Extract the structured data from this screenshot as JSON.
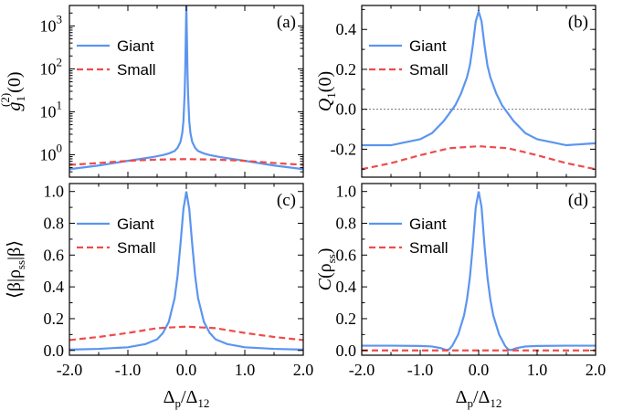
{
  "colors": {
    "giant": "#5b95f0",
    "small": "#ee4b4b",
    "zero_line": "#777777"
  },
  "xlabel": {
    "main": "Δ",
    "sub1": "p",
    "slash": "/Δ",
    "sub2": "12"
  },
  "chart_data": [
    {
      "id": "a",
      "type": "line",
      "panel_tag": "(a)",
      "yscale": "log",
      "ylabel": {
        "main": "g",
        "sup": "(2)",
        "sub": "1",
        "rest": "(0)"
      },
      "xlim": [
        -2.0,
        2.0
      ],
      "ylim": [
        0.3,
        3000
      ],
      "xticks": [
        -2.0,
        -1.0,
        0.0,
        1.0,
        2.0
      ],
      "xtick_labels": [],
      "yticks": [
        1,
        10,
        100,
        1000
      ],
      "ytick_labels": [
        {
          "b": "10",
          "e": "0"
        },
        {
          "b": "10",
          "e": "1"
        },
        {
          "b": "10",
          "e": "2"
        },
        {
          "b": "10",
          "e": "3"
        }
      ],
      "legend_position": "top-left",
      "series": [
        {
          "name": "Giant",
          "color": "#5b95f0",
          "dash": "solid",
          "x": [
            -2.0,
            -1.5,
            -1.0,
            -0.6,
            -0.4,
            -0.3,
            -0.2,
            -0.15,
            -0.1,
            -0.07,
            -0.05,
            -0.03,
            -0.02,
            -0.01,
            0.0,
            0.01,
            0.02,
            0.03,
            0.05,
            0.07,
            0.1,
            0.15,
            0.2,
            0.3,
            0.4,
            0.6,
            1.0,
            1.5,
            2.0
          ],
          "y": [
            0.46,
            0.56,
            0.72,
            0.87,
            0.98,
            1.07,
            1.22,
            1.45,
            2.0,
            3.2,
            6.0,
            25,
            80,
            500,
            3000,
            500,
            80,
            25,
            6.0,
            3.2,
            2.0,
            1.45,
            1.22,
            1.07,
            0.98,
            0.87,
            0.72,
            0.56,
            0.46
          ]
        },
        {
          "name": "Small",
          "color": "#ee4b4b",
          "dash": "dashed",
          "x": [
            -2.0,
            -1.5,
            -1.0,
            -0.5,
            0.0,
            0.5,
            1.0,
            1.5,
            2.0
          ],
          "y": [
            0.58,
            0.64,
            0.72,
            0.77,
            0.79,
            0.77,
            0.72,
            0.64,
            0.58
          ]
        }
      ]
    },
    {
      "id": "b",
      "type": "line",
      "panel_tag": "(b)",
      "yscale": "linear",
      "ylabel": {
        "main": "Q",
        "sub": "1",
        "rest": "(0)"
      },
      "xlim": [
        -2.0,
        2.0
      ],
      "ylim": [
        -0.34,
        0.52
      ],
      "xticks": [
        -2.0,
        -1.0,
        0.0,
        1.0,
        2.0
      ],
      "xtick_labels": [],
      "yticks": [
        -0.2,
        0.0,
        0.2,
        0.4
      ],
      "ytick_labels": [
        "-0.2",
        "0.0",
        "0.2",
        "0.4"
      ],
      "zero_line": true,
      "legend_position": "top-right",
      "series": [
        {
          "name": "Giant",
          "color": "#5b95f0",
          "dash": "solid",
          "x": [
            -2.0,
            -1.5,
            -1.0,
            -0.8,
            -0.6,
            -0.5,
            -0.4,
            -0.3,
            -0.2,
            -0.15,
            -0.1,
            -0.05,
            0.0,
            0.05,
            0.1,
            0.15,
            0.2,
            0.3,
            0.4,
            0.5,
            0.6,
            0.8,
            1.0,
            1.5,
            2.0
          ],
          "y": [
            -0.18,
            -0.18,
            -0.15,
            -0.12,
            -0.06,
            -0.02,
            0.02,
            0.08,
            0.16,
            0.22,
            0.32,
            0.44,
            0.49,
            0.44,
            0.32,
            0.22,
            0.16,
            0.08,
            0.02,
            -0.02,
            -0.06,
            -0.12,
            -0.15,
            -0.18,
            -0.17
          ]
        },
        {
          "name": "Small",
          "color": "#ee4b4b",
          "dash": "dashed",
          "x": [
            -2.0,
            -1.5,
            -1.0,
            -0.5,
            0.0,
            0.5,
            1.0,
            1.5,
            2.0
          ],
          "y": [
            -0.3,
            -0.27,
            -0.23,
            -0.195,
            -0.185,
            -0.195,
            -0.23,
            -0.27,
            -0.3
          ]
        }
      ]
    },
    {
      "id": "c",
      "type": "line",
      "panel_tag": "(c)",
      "yscale": "linear",
      "ylabel": {
        "text": "⟨β|ρ",
        "sub": "ss",
        "rest": "|β⟩"
      },
      "xlim": [
        -2.0,
        2.0
      ],
      "ylim": [
        -0.03,
        1.05
      ],
      "xticks": [
        -2.0,
        -1.0,
        0.0,
        1.0,
        2.0
      ],
      "xtick_labels": [
        "-2.0",
        "-1.0",
        "0.0",
        "1.0",
        "2.0"
      ],
      "yticks": [
        0.0,
        0.2,
        0.4,
        0.6,
        0.8,
        1.0
      ],
      "ytick_labels": [
        "0.0",
        "0.2",
        "0.4",
        "0.6",
        "0.8",
        "1.0"
      ],
      "legend_position": "top-right",
      "series": [
        {
          "name": "Giant",
          "color": "#5b95f0",
          "dash": "solid",
          "x": [
            -2.0,
            -1.5,
            -1.0,
            -0.7,
            -0.5,
            -0.4,
            -0.3,
            -0.2,
            -0.15,
            -0.1,
            -0.05,
            0.0,
            0.05,
            0.1,
            0.15,
            0.2,
            0.3,
            0.4,
            0.5,
            0.7,
            1.0,
            1.5,
            2.0
          ],
          "y": [
            0.005,
            0.01,
            0.02,
            0.04,
            0.07,
            0.11,
            0.18,
            0.33,
            0.47,
            0.67,
            0.89,
            1.0,
            0.89,
            0.67,
            0.47,
            0.33,
            0.18,
            0.11,
            0.07,
            0.04,
            0.02,
            0.01,
            0.005
          ]
        },
        {
          "name": "Small",
          "color": "#ee4b4b",
          "dash": "dashed",
          "x": [
            -2.0,
            -1.5,
            -1.0,
            -0.5,
            0.0,
            0.5,
            1.0,
            1.5,
            2.0
          ],
          "y": [
            0.065,
            0.085,
            0.11,
            0.14,
            0.15,
            0.14,
            0.11,
            0.085,
            0.065
          ]
        }
      ]
    },
    {
      "id": "d",
      "type": "line",
      "panel_tag": "(d)",
      "yscale": "linear",
      "ylabel": {
        "main": "C",
        "text": "(ρ",
        "sub": "ss",
        "rest": ")"
      },
      "xlim": [
        -2.0,
        2.0
      ],
      "ylim": [
        -0.03,
        1.05
      ],
      "xticks": [
        -2.0,
        -1.0,
        0.0,
        1.0,
        2.0
      ],
      "xtick_labels": [
        "-2.0",
        "-1.0",
        "0.0",
        "1.0",
        "2.0"
      ],
      "yticks": [
        0.0,
        0.2,
        0.4,
        0.6,
        0.8,
        1.0
      ],
      "ytick_labels": [
        "0.0",
        "0.2",
        "0.4",
        "0.6",
        "0.8",
        "1.0"
      ],
      "legend_position": "top-right",
      "series": [
        {
          "name": "Giant",
          "color": "#5b95f0",
          "dash": "solid",
          "x": [
            -2.0,
            -1.5,
            -1.0,
            -0.8,
            -0.65,
            -0.55,
            -0.5,
            -0.45,
            -0.35,
            -0.25,
            -0.2,
            -0.15,
            -0.1,
            -0.05,
            0.0,
            0.05,
            0.1,
            0.15,
            0.2,
            0.25,
            0.35,
            0.45,
            0.5,
            0.55,
            0.65,
            0.8,
            1.0,
            1.5,
            2.0
          ],
          "y": [
            0.03,
            0.03,
            0.028,
            0.025,
            0.015,
            0.002,
            0.008,
            0.03,
            0.1,
            0.22,
            0.32,
            0.46,
            0.66,
            0.9,
            1.0,
            0.9,
            0.66,
            0.46,
            0.32,
            0.22,
            0.1,
            0.03,
            0.008,
            0.002,
            0.015,
            0.025,
            0.028,
            0.03,
            0.03
          ]
        },
        {
          "name": "Small",
          "color": "#ee4b4b",
          "dash": "dashed",
          "x": [
            -2.0,
            0.0,
            2.0
          ],
          "y": [
            0.0,
            0.0,
            0.0
          ]
        }
      ]
    }
  ]
}
